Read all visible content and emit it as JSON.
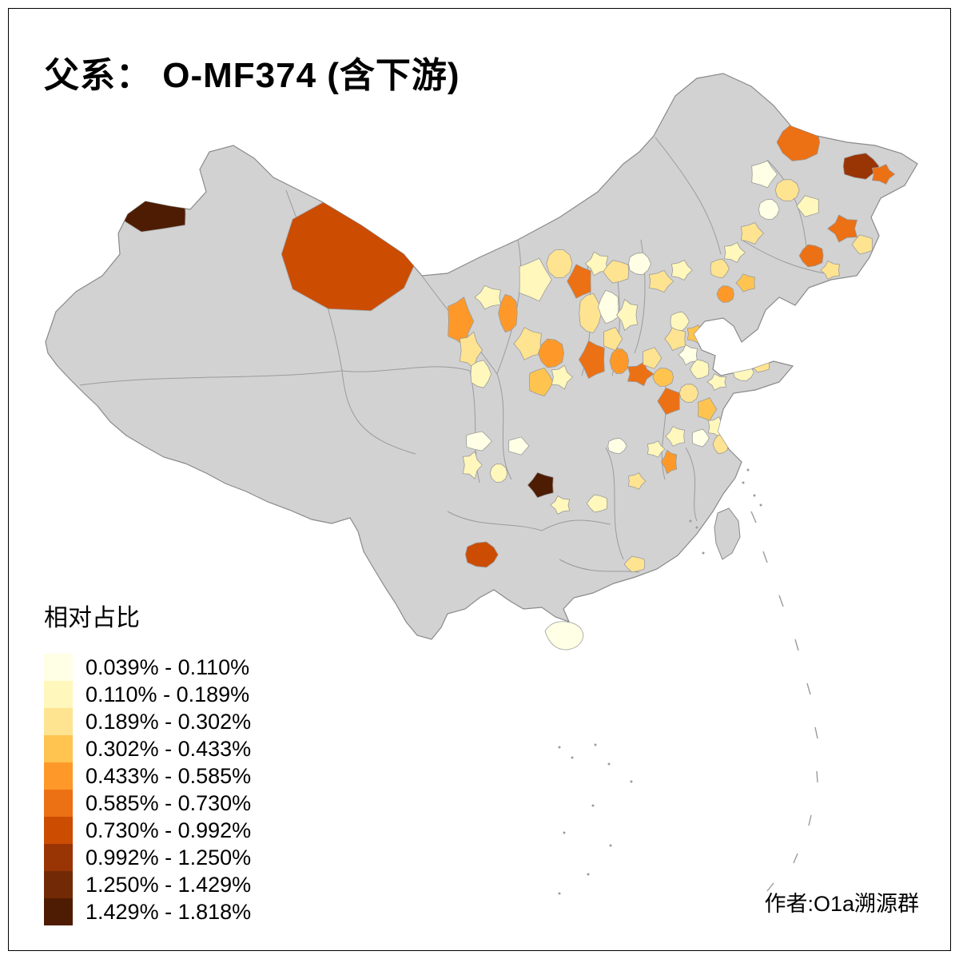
{
  "title": "父系： O-MF374 (含下游)",
  "legend": {
    "title": "相对占比",
    "bins": [
      {
        "label": "0.039% - 0.110%",
        "color": "#FFFFE5"
      },
      {
        "label": "0.110% - 0.189%",
        "color": "#FFF7BC"
      },
      {
        "label": "0.189% - 0.302%",
        "color": "#FEE391"
      },
      {
        "label": "0.302% - 0.433%",
        "color": "#FEC44F"
      },
      {
        "label": "0.433% - 0.585%",
        "color": "#FE9929"
      },
      {
        "label": "0.585% - 0.730%",
        "color": "#EC7014"
      },
      {
        "label": "0.730% - 0.992%",
        "color": "#CC4C02"
      },
      {
        "label": "0.992% - 1.250%",
        "color": "#993404"
      },
      {
        "label": "1.250% - 1.429%",
        "color": "#722905"
      },
      {
        "label": "1.429% - 1.818%",
        "color": "#4E1C03"
      }
    ]
  },
  "map": {
    "base_fill": "#D2D2D2",
    "boundary_color": "#9B9B9B",
    "outline_color": "#8A8A8A",
    "background": "#FFFFFF",
    "frame_color": "#000000"
  },
  "attribution": "作者:O1a溯源群"
}
